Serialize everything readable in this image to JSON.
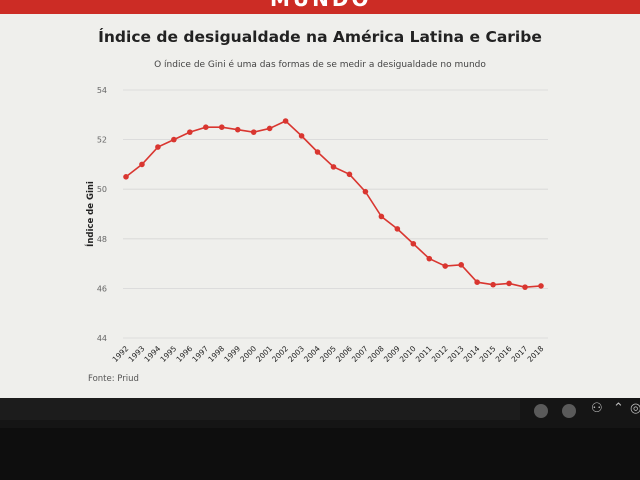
{
  "header": {
    "banner_text": "MUNDO"
  },
  "chart_data": {
    "type": "line",
    "title": "Índice de desigualdade na América Latina e Caribe",
    "subtitle": "O índice de Gini é uma das formas de se medir a desigualdade no mundo",
    "xlabel": "",
    "ylabel": "Índice de Gini",
    "ylim": [
      44,
      54
    ],
    "yticks": [
      "44",
      "46",
      "48",
      "50",
      "52",
      "54"
    ],
    "grid": true,
    "categories": [
      "1992",
      "1993",
      "1994",
      "1995",
      "1996",
      "1997",
      "1998",
      "1999",
      "2000",
      "2001",
      "2002",
      "2003",
      "2004",
      "2005",
      "2006",
      "2007",
      "2008",
      "2009",
      "2010",
      "2011",
      "2012",
      "2013",
      "2014",
      "2015",
      "2016",
      "2017",
      "2018"
    ],
    "series": [
      {
        "values": [
          50.5,
          51.0,
          51.7,
          52.0,
          52.3,
          52.5,
          52.5,
          52.4,
          52.3,
          52.45,
          52.75,
          52.15,
          51.5,
          50.9,
          50.6,
          49.9,
          48.9,
          48.4,
          47.8,
          47.2,
          46.9,
          46.95,
          46.25,
          46.15,
          46.2,
          46.05,
          46.1
        ],
        "color": "#d93630"
      }
    ]
  },
  "footer": {
    "source": "Fonte: Priud"
  },
  "colors": {
    "accent": "#cc2c25",
    "line": "#d93630",
    "grid": "#d6d6d6"
  },
  "taskbar": {
    "icons": [
      "chevron-up-icon",
      "audio-icon",
      "people-icon",
      "record-icon"
    ]
  }
}
